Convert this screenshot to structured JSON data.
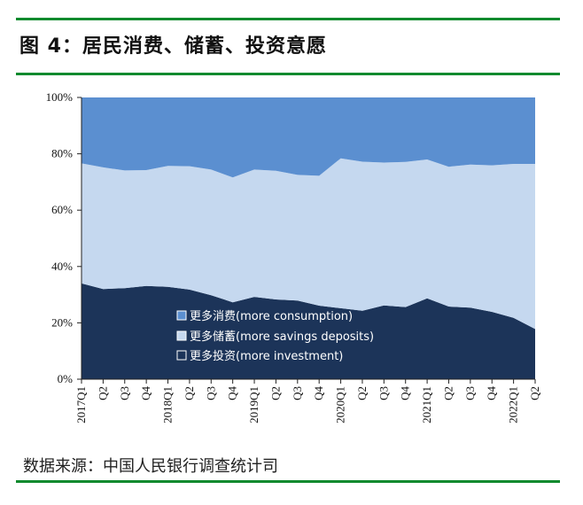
{
  "figure": {
    "title": "图 4：居民消费、储蓄、投资意愿",
    "source": "数据来源：中国人民银行调查统计司"
  },
  "colors": {
    "rule": "#0f8a2e",
    "consumption": "#5b8fd0",
    "savings": "#c5d8ef",
    "investment": "#1c3459"
  },
  "chart_data": {
    "type": "area",
    "stacked": true,
    "title": "",
    "xlabel": "",
    "ylabel": "",
    "ylim": [
      0,
      100
    ],
    "y_ticks": [
      "0%",
      "20%",
      "40%",
      "60%",
      "80%",
      "100%"
    ],
    "categories": [
      "2017Q1",
      "Q2",
      "Q3",
      "Q4",
      "2018Q1",
      "Q2",
      "Q3",
      "Q4",
      "2019Q1",
      "Q2",
      "Q3",
      "Q4",
      "2020Q1",
      "Q2",
      "Q3",
      "Q4",
      "2021Q1",
      "Q2",
      "Q3",
      "Q4",
      "2022Q1",
      "Q2"
    ],
    "series": [
      {
        "name": "更多投资(more investment)",
        "values": [
          34.0,
          32.0,
          32.3,
          33.1,
          32.8,
          31.8,
          29.8,
          27.3,
          29.2,
          28.3,
          27.9,
          26.1,
          25.2,
          24.3,
          26.2,
          25.6,
          28.7,
          25.8,
          25.4,
          23.9,
          21.8,
          17.8
        ]
      },
      {
        "name": "更多储蓄(more savings deposits)",
        "values": [
          42.6,
          43.2,
          41.8,
          41.1,
          42.9,
          43.8,
          44.6,
          44.3,
          45.2,
          45.7,
          44.6,
          46.1,
          53.2,
          52.9,
          50.7,
          51.5,
          49.3,
          49.6,
          50.8,
          52.0,
          54.6,
          58.6
        ]
      },
      {
        "name": "更多消费(more consumption)",
        "values": [
          23.4,
          24.8,
          25.9,
          25.8,
          24.3,
          24.4,
          25.6,
          28.4,
          25.6,
          26.0,
          27.5,
          27.8,
          21.6,
          22.8,
          23.1,
          22.9,
          22.0,
          24.6,
          23.8,
          24.1,
          23.6,
          23.6
        ]
      }
    ],
    "legend": {
      "position": "bottom-center",
      "entries": [
        "更多消费(more consumption)",
        "更多储蓄(more savings deposits)",
        "更多投资(more investment)"
      ],
      "markers": [
        "■",
        "■",
        "□"
      ]
    }
  }
}
